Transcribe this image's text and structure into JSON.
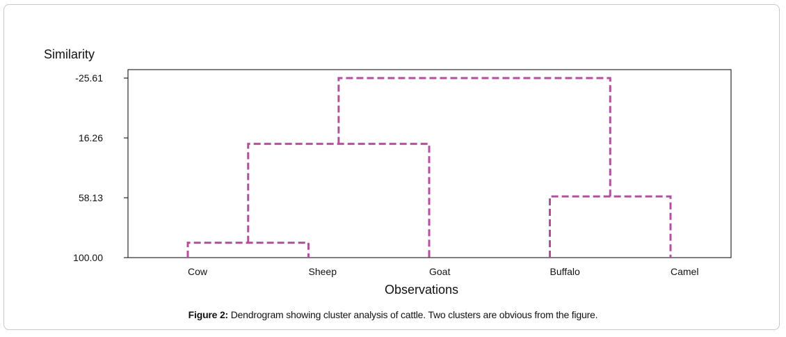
{
  "chart_data": {
    "type": "dendrogram",
    "ylabel": "Similarity",
    "xlabel": "Observations",
    "yticks": [
      {
        "label": "-25.61",
        "value": -25.61
      },
      {
        "label": "16.26",
        "value": 16.26
      },
      {
        "label": "58.13",
        "value": 58.13
      },
      {
        "label": "100.00",
        "value": 100.0
      }
    ],
    "ylim": [
      100.0,
      -31.5
    ],
    "leaves": [
      "Cow",
      "Sheep",
      "Goat",
      "Buffalo",
      "Camel"
    ],
    "merges": [
      {
        "left": "Cow",
        "right": "Sheep",
        "similarity": 89.6
      },
      {
        "left": "Buffalo",
        "right": "Camel",
        "similarity": 57.2
      },
      {
        "left": "Cow+Sheep",
        "right": "Goat",
        "similarity": 20.4
      },
      {
        "left": "Cow+Sheep+Goat",
        "right": "Buffalo+Camel",
        "similarity": -25.61
      }
    ],
    "line_color": "#b44fa0",
    "line_style": "dashed"
  },
  "caption": {
    "label": "Figure 2:",
    "text": " Dendrogram showing cluster analysis of cattle. Two clusters are obvious from the figure."
  }
}
